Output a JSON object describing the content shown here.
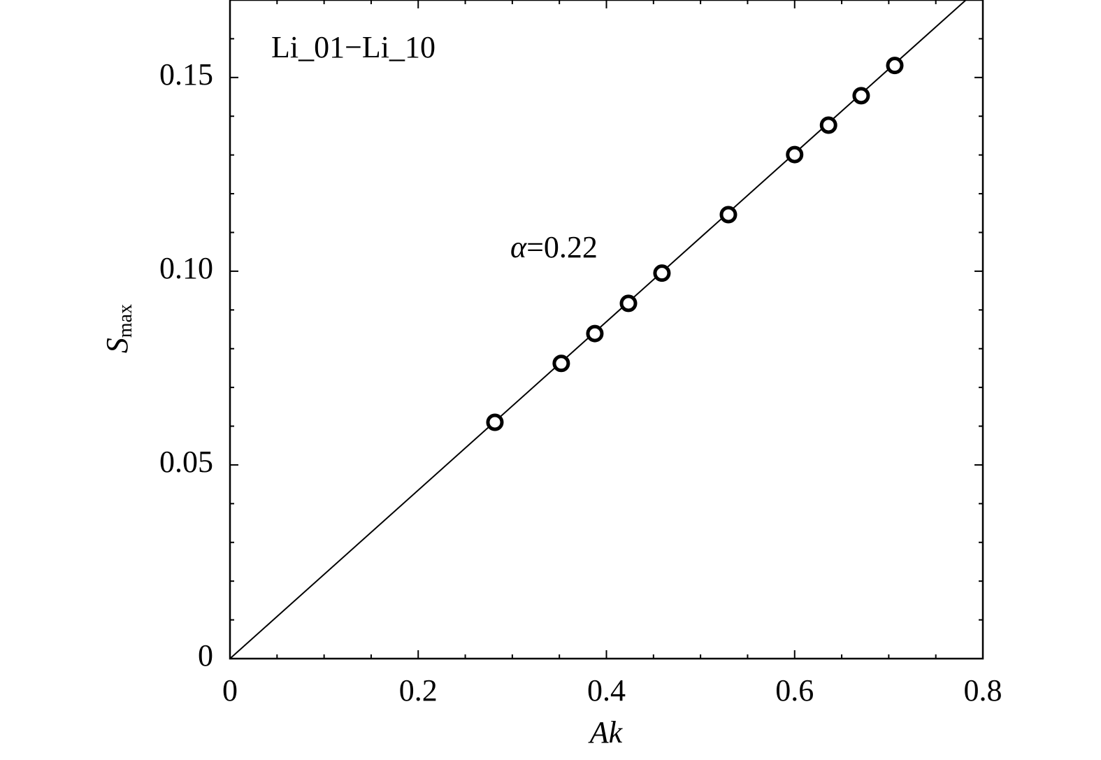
{
  "chart_data": {
    "type": "scatter",
    "legend_text": "Li_01−Li_10",
    "annotation": {
      "symbol": "α",
      "text": "=0.22"
    },
    "xlabel": "Ak",
    "ylabel": {
      "main": "S",
      "sub": "max"
    },
    "x": [
      0.2815,
      0.352,
      0.3877,
      0.4234,
      0.459,
      0.5296,
      0.6,
      0.636,
      0.6707,
      0.7064
    ],
    "values": [
      0.061,
      0.0762,
      0.0839,
      0.0917,
      0.0995,
      0.1146,
      0.1301,
      0.1377,
      0.1453,
      0.1531
    ],
    "color": "#000000",
    "fit": {
      "x": [
        0,
        0.782
      ],
      "values": [
        0,
        0.17
      ]
    },
    "xlim": [
      0,
      0.8
    ],
    "ylim": [
      0,
      0.17
    ],
    "xticks": [
      0,
      0.2,
      0.4,
      0.6,
      0.8
    ],
    "yticks": [
      0,
      0.05,
      {
        "value": 0.1,
        "label": "0.10"
      },
      0.15
    ],
    "minor_xticks": [
      0.05,
      0.1,
      0.15,
      0.25,
      0.3,
      0.35,
      0.45,
      0.5,
      0.55,
      0.65,
      0.7,
      0.75
    ],
    "minor_yticks": [
      0.01,
      0.02,
      0.03,
      0.04,
      0.06,
      0.07,
      0.08,
      0.09,
      0.11,
      0.12,
      0.13,
      0.14,
      0.16
    ]
  }
}
